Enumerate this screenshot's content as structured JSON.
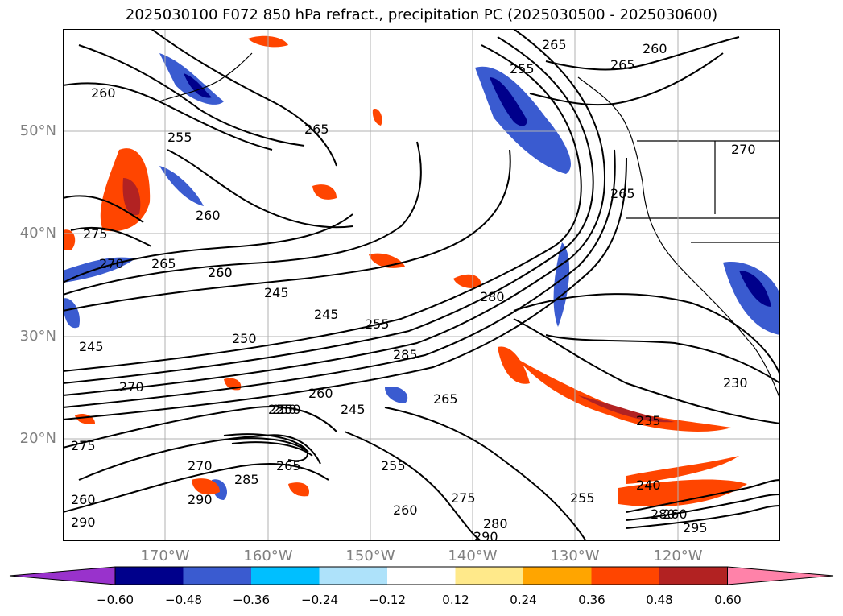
{
  "title": "2025030100 F072 850 hPa refract., precipitation PC (2025030500 - 2025030600)",
  "lat_labels": [
    "50°N",
    "40°N",
    "30°N",
    "20°N"
  ],
  "lon_labels": [
    "170°W",
    "160°W",
    "150°W",
    "140°W",
    "130°W",
    "120°W"
  ],
  "contour_labels": [
    "260",
    "255",
    "265",
    "265",
    "260",
    "265",
    "260",
    "265",
    "255",
    "260",
    "275",
    "270",
    "265",
    "260",
    "245",
    "245",
    "255",
    "280",
    "245",
    "250",
    "250",
    "285",
    "270",
    "260",
    "265",
    "230",
    "235",
    "250",
    "245",
    "275",
    "270",
    "285",
    "255",
    "275",
    "255",
    "240",
    "250",
    "290",
    "280",
    "265",
    "290",
    "290",
    "295",
    "280",
    "260",
    "260",
    "260",
    "270"
  ],
  "colorbar": {
    "ticks": [
      "−0.60",
      "−0.48",
      "−0.36",
      "−0.24",
      "−0.12",
      "0.12",
      "0.24",
      "0.36",
      "0.48",
      "0.60"
    ],
    "colors": [
      "#9932CC",
      "#00008B",
      "#3A5BD0",
      "#00BFFF",
      "#AEE2FA",
      "#FFFFFF",
      "#FFE98A",
      "#FFA500",
      "#FF4500",
      "#B22222",
      "#FF82A9"
    ]
  }
}
